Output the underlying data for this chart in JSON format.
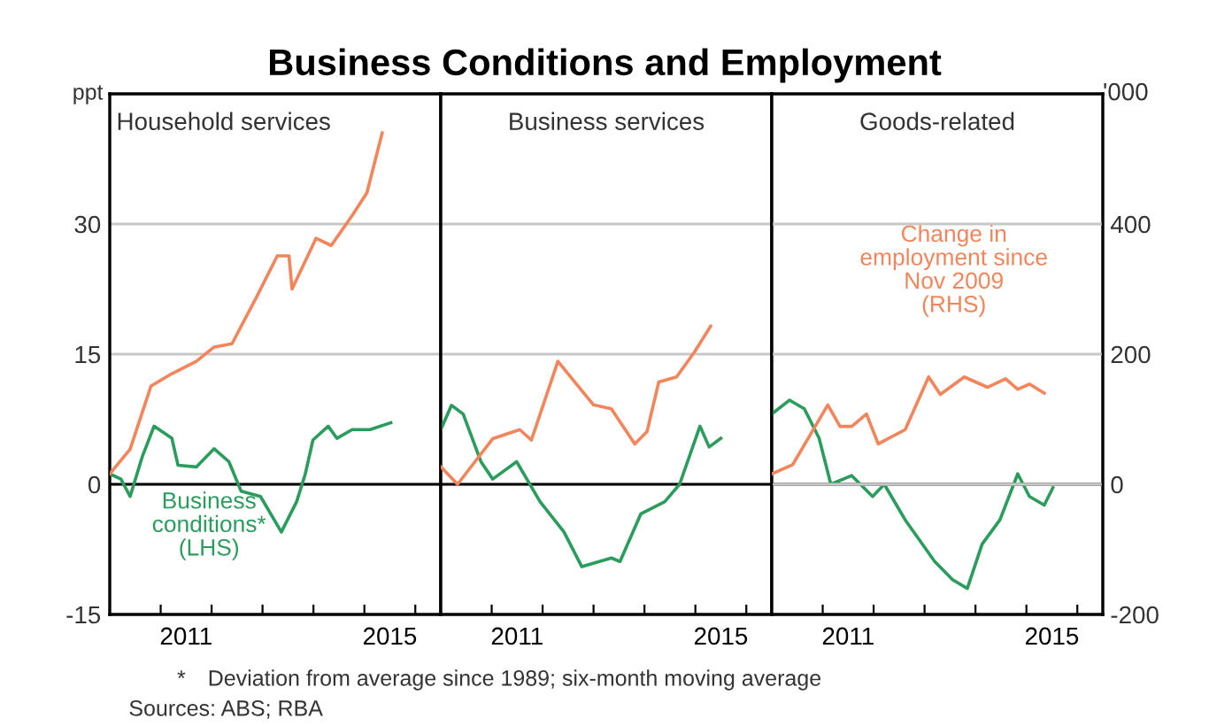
{
  "chart_data": [
    {
      "type": "line",
      "title": "Business Conditions and Employment",
      "subtitle": "Household services",
      "ylabel": "ppt",
      "xlim": [
        2010,
        2016.5
      ],
      "xticks": [
        {
          "value": 2011,
          "label": null
        },
        {
          "value": 2011.5,
          "label": "2011"
        },
        {
          "value": 2012,
          "label": null
        },
        {
          "value": 2013,
          "label": null
        },
        {
          "value": 2014,
          "label": null
        },
        {
          "value": 2015,
          "label": null
        },
        {
          "value": 2015.5,
          "label": "2015"
        },
        {
          "value": 2016,
          "label": null
        }
      ],
      "ylim": [
        -15,
        45
      ],
      "yticks": [
        -15,
        0,
        15,
        30
      ],
      "y2lim": [
        -200,
        600
      ],
      "grid": "y",
      "ref_lines": [
        {
          "axis": "y",
          "value": 0,
          "color": "#000000"
        }
      ],
      "series": [
        {
          "name": "Business\nconditions*\n(LHS)",
          "color": "#2a9d5c",
          "axis": "y",
          "x": [
            2010.0,
            2010.22,
            2010.4,
            2010.64,
            2010.87,
            2011.22,
            2011.34,
            2011.7,
            2012.05,
            2012.34,
            2012.58,
            2012.96,
            2013.37,
            2013.67,
            2013.84,
            2013.99,
            2014.29,
            2014.46,
            2014.76,
            2015.11,
            2015.52
          ],
          "values": [
            1.2,
            0.6,
            -1.4,
            3.2,
            6.7,
            5.3,
            2.2,
            2.0,
            4.1,
            2.6,
            -0.8,
            -1.4,
            -5.5,
            -2.0,
            1.2,
            5.1,
            6.7,
            5.3,
            6.3,
            6.3,
            7.1
          ]
        },
        {
          "color": "#f4855a",
          "axis": "y2",
          "x": [
            2010.0,
            2010.4,
            2010.81,
            2011.22,
            2011.7,
            2012.05,
            2012.4,
            2012.87,
            2013.29,
            2013.52,
            2013.58,
            2014.05,
            2014.35,
            2014.76,
            2015.05,
            2015.35
          ],
          "values": [
            16,
            54,
            151,
            170,
            189,
            211,
            216,
            286,
            351,
            351,
            300,
            378,
            367,
            413,
            448,
            540
          ]
        }
      ],
      "annotations": [
        "* Deviation from average since 1989; six-month moving average",
        "Sources: ABS; RBA"
      ]
    },
    {
      "type": "line",
      "subtitle": "Business services",
      "xlim": [
        2010,
        2016.5
      ],
      "xticks": [
        {
          "value": 2011,
          "label": null
        },
        {
          "value": 2011.5,
          "label": "2011"
        },
        {
          "value": 2012,
          "label": null
        },
        {
          "value": 2013,
          "label": null
        },
        {
          "value": 2014,
          "label": null
        },
        {
          "value": 2015,
          "label": null
        },
        {
          "value": 2015.5,
          "label": "2015"
        },
        {
          "value": 2016,
          "label": null
        }
      ],
      "ylim": [
        -15,
        45
      ],
      "yticks": [
        -15,
        0,
        15,
        30
      ],
      "y2lim": [
        -200,
        600
      ],
      "tick_labels": "x",
      "grid": "y",
      "ref_lines": [
        {
          "axis": "y",
          "value": 0,
          "color": "#000000"
        }
      ],
      "series": [
        {
          "color": "#2a9d5c",
          "axis": "y",
          "x": [
            2010.0,
            2010.21,
            2010.44,
            2010.79,
            2011.02,
            2011.49,
            2011.95,
            2012.42,
            2012.77,
            2013.35,
            2013.52,
            2013.93,
            2014.4,
            2014.69,
            2015.09,
            2015.27,
            2015.5
          ],
          "values": [
            6.3,
            9.1,
            8.1,
            2.6,
            0.6,
            2.6,
            -2.0,
            -5.5,
            -9.5,
            -8.5,
            -8.9,
            -3.4,
            -2.0,
            0,
            6.7,
            4.3,
            5.3
          ]
        },
        {
          "color": "#f4855a",
          "axis": "y2",
          "x": [
            2010.0,
            2010.33,
            2011.02,
            2011.55,
            2011.78,
            2012.3,
            2013.0,
            2013.35,
            2013.81,
            2014.05,
            2014.28,
            2014.63,
            2014.98,
            2015.3
          ],
          "values": [
            27,
            0,
            70,
            84,
            68,
            189,
            122,
            116,
            62,
            81,
            157,
            165,
            203,
            243
          ]
        }
      ]
    },
    {
      "type": "line",
      "subtitle": "Goods-related",
      "y2label": "'000",
      "xlim": [
        2010,
        2016.5
      ],
      "xticks": [
        {
          "value": 2011,
          "label": null
        },
        {
          "value": 2011.5,
          "label": "2011"
        },
        {
          "value": 2012,
          "label": null
        },
        {
          "value": 2013,
          "label": null
        },
        {
          "value": 2014,
          "label": null
        },
        {
          "value": 2015,
          "label": null
        },
        {
          "value": 2015.5,
          "label": "2015"
        },
        {
          "value": 2016,
          "label": null
        }
      ],
      "ylim": [
        -15,
        45
      ],
      "y2lim": [
        -200,
        600
      ],
      "y2ticks": [
        -200,
        0,
        200,
        400
      ],
      "grid": "y",
      "ref_lines": [
        {
          "axis": "y",
          "value": 0,
          "color": "#000000"
        }
      ],
      "series": [
        {
          "color": "#2a9d5c",
          "axis": "y",
          "x": [
            2010.0,
            2010.35,
            2010.64,
            2010.93,
            2011.16,
            2011.57,
            2011.98,
            2012.21,
            2012.62,
            2013.2,
            2013.55,
            2013.84,
            2014.13,
            2014.48,
            2014.83,
            2015.06,
            2015.35,
            2015.52
          ],
          "values": [
            8.1,
            9.7,
            8.7,
            5.3,
            0,
            1.0,
            -1.4,
            0,
            -4.1,
            -8.9,
            -11.0,
            -12.0,
            -6.9,
            -4.1,
            1.2,
            -1.4,
            -2.4,
            -0.4
          ]
        },
        {
          "name": "Change in\nemployment since\nNov 2009\n(RHS)",
          "color": "#f4855a",
          "axis": "y2",
          "x": [
            2010.0,
            2010.41,
            2011.1,
            2011.34,
            2011.57,
            2011.86,
            2012.09,
            2012.62,
            2013.08,
            2013.31,
            2013.78,
            2014.24,
            2014.59,
            2014.83,
            2015.06,
            2015.35
          ],
          "values": [
            16,
            30,
            122,
            89,
            89,
            108,
            62,
            84,
            165,
            138,
            165,
            149,
            162,
            146,
            154,
            140
          ]
        }
      ]
    }
  ]
}
